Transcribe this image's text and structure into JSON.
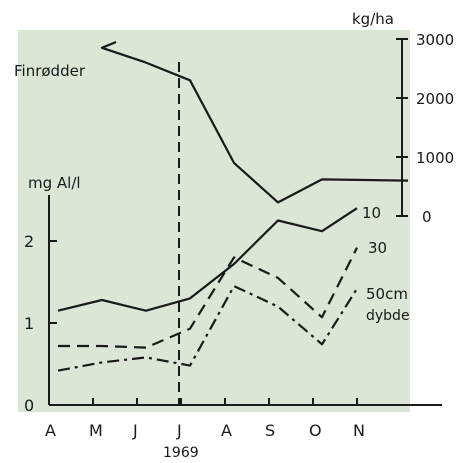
{
  "chart_data": {
    "type": "line",
    "title": "",
    "categories": [
      "A",
      "M",
      "J",
      "J",
      "A",
      "S",
      "O",
      "N"
    ],
    "x_axis_caption": "1969",
    "left_axis": {
      "label": "mg Al/l",
      "ticks": [
        0,
        1,
        2
      ],
      "ylim": [
        0,
        2.6
      ]
    },
    "right_axis": {
      "label": "kg/ha",
      "ticks": [
        0,
        1000,
        2000,
        3000
      ],
      "ylim": [
        0,
        3000
      ]
    },
    "grid": false,
    "vertical_marker_category_index": 3,
    "series": [
      {
        "name": "Finrødder",
        "axis": "right",
        "style": "solid",
        "values": [
          2950,
          2850,
          2600,
          2300,
          900,
          230,
          620,
          600
        ]
      },
      {
        "name": "10",
        "axis": "left",
        "style": "solid",
        "values": [
          1.15,
          1.28,
          1.15,
          1.3,
          1.72,
          2.25,
          2.12,
          2.4
        ]
      },
      {
        "name": "30",
        "axis": "left",
        "style": "dashed",
        "values": [
          0.72,
          0.72,
          0.7,
          0.93,
          1.8,
          1.55,
          1.07,
          1.92
        ]
      },
      {
        "name": "50cm",
        "axis": "left",
        "style": "dashdot",
        "values": [
          0.42,
          0.52,
          0.58,
          0.48,
          1.45,
          1.2,
          0.74,
          1.42
        ]
      }
    ],
    "series_note": "dybde"
  },
  "colors": {
    "background": "#ffffff",
    "plot_area": "#dbe6d6",
    "ink": "#1a1a1a"
  }
}
